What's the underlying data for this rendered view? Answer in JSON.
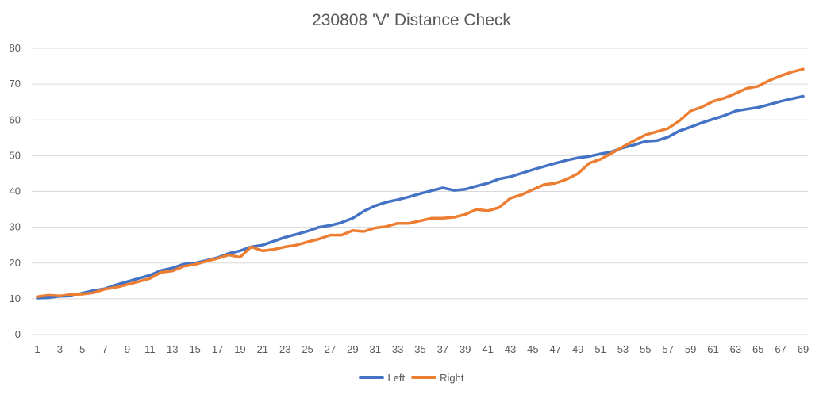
{
  "chart_data": {
    "type": "line",
    "title": "230808 'V' Distance Check",
    "xlabel": "",
    "ylabel": "",
    "x": [
      1,
      2,
      3,
      4,
      5,
      6,
      7,
      8,
      9,
      10,
      11,
      12,
      13,
      14,
      15,
      16,
      17,
      18,
      19,
      20,
      21,
      22,
      23,
      24,
      25,
      26,
      27,
      28,
      29,
      30,
      31,
      32,
      33,
      34,
      35,
      36,
      37,
      38,
      39,
      40,
      41,
      42,
      43,
      44,
      45,
      46,
      47,
      48,
      49,
      50,
      51,
      52,
      53,
      54,
      55,
      56,
      57,
      58,
      59,
      60,
      61,
      62,
      63,
      64,
      65,
      66,
      67,
      68,
      69
    ],
    "xticks": [
      1,
      3,
      5,
      7,
      9,
      11,
      13,
      15,
      17,
      19,
      21,
      23,
      25,
      27,
      29,
      31,
      33,
      35,
      37,
      39,
      41,
      43,
      45,
      47,
      49,
      51,
      53,
      55,
      57,
      59,
      61,
      63,
      65,
      67,
      69
    ],
    "ylim": [
      0,
      80
    ],
    "yticks": [
      0,
      10,
      20,
      30,
      40,
      50,
      60,
      70,
      80
    ],
    "grid": true,
    "legend_position": "bottom",
    "series": [
      {
        "name": "Left",
        "color": "#4472c4",
        "values": [
          10.2,
          10.3,
          10.7,
          10.8,
          11.6,
          12.3,
          12.8,
          13.9,
          14.8,
          15.7,
          16.6,
          17.9,
          18.6,
          19.7,
          20.0,
          20.7,
          21.5,
          22.7,
          23.4,
          24.5,
          25.0,
          26.1,
          27.2,
          28.0,
          28.9,
          30.0,
          30.5,
          31.3,
          32.5,
          34.5,
          36.0,
          37.0,
          37.7,
          38.5,
          39.4,
          40.2,
          41.0,
          40.3,
          40.6,
          41.5,
          42.3,
          43.5,
          44.1,
          45.1,
          46.1,
          47.0,
          47.9,
          48.7,
          49.4,
          49.8,
          50.5,
          51.1,
          52.2,
          53.0,
          54.0,
          54.2,
          55.2,
          56.9,
          58.0,
          59.2,
          60.2,
          61.2,
          62.5,
          63.0,
          63.5,
          64.3,
          65.2,
          65.9,
          66.6
        ]
      },
      {
        "name": "Right",
        "color": "#ed7d31",
        "values": [
          10.6,
          11.0,
          10.8,
          11.2,
          11.3,
          11.7,
          12.7,
          13.2,
          14.0,
          14.8,
          15.7,
          17.4,
          17.8,
          19.1,
          19.6,
          20.5,
          21.3,
          22.3,
          21.6,
          24.5,
          23.4,
          23.8,
          24.5,
          25.0,
          25.9,
          26.7,
          27.8,
          27.8,
          29.1,
          28.8,
          29.8,
          30.2,
          31.1,
          31.1,
          31.8,
          32.5,
          32.5,
          32.8,
          33.6,
          35.0,
          34.6,
          35.5,
          38.1,
          39.1,
          40.5,
          41.9,
          42.3,
          43.4,
          45.0,
          47.9,
          49.0,
          50.7,
          52.5,
          54.2,
          55.8,
          56.7,
          57.6,
          59.7,
          62.5,
          63.6,
          65.2,
          66.1,
          67.4,
          68.8,
          69.4,
          71.0,
          72.3,
          73.4,
          74.2
        ]
      }
    ]
  }
}
